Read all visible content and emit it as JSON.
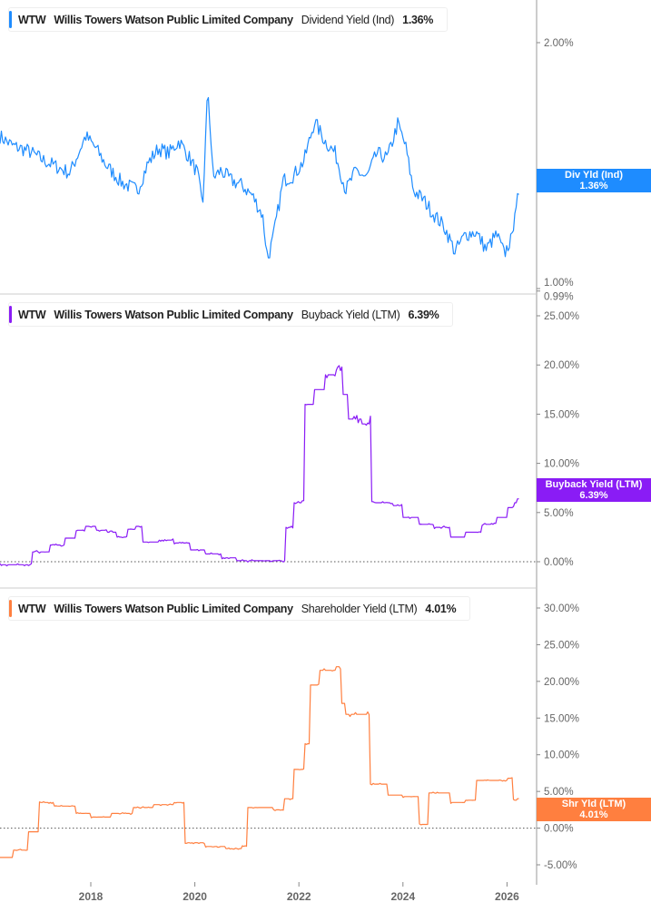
{
  "ticker": "WTW",
  "company": "Willis Towers Watson Public Limited Company",
  "colors": {
    "div": "#1e8cff",
    "buyback": "#8a1cf5",
    "shr": "#ff7f3f"
  },
  "chart_data": [
    {
      "type": "line",
      "metric": "Dividend Yield (Ind)",
      "last": "1.36%",
      "tag_label": "Div Yld (Ind)",
      "tag_value": "1.36%",
      "ylim": [
        0.99,
        2.2
      ],
      "yticks": [
        {
          "v": 2.0,
          "l": "2.00%"
        },
        {
          "v": 1.0,
          "l": "1.00%"
        },
        {
          "v": 0.99,
          "l": "0.99%"
        }
      ],
      "x": [
        2016.25,
        2016.5,
        2016.8,
        2017.1,
        2017.3,
        2017.6,
        2017.9,
        2018.1,
        2018.3,
        2018.6,
        2018.9,
        2019.1,
        2019.3,
        2019.5,
        2019.7,
        2019.9,
        2020.05,
        2020.15,
        2020.25,
        2020.35,
        2020.5,
        2020.7,
        2020.9,
        2021.1,
        2021.3,
        2021.4,
        2021.5,
        2021.7,
        2021.9,
        2022.1,
        2022.3,
        2022.5,
        2022.7,
        2022.9,
        2023.1,
        2023.3,
        2023.5,
        2023.7,
        2023.9,
        2024.05,
        2024.2,
        2024.4,
        2024.6,
        2024.8,
        2025.0,
        2025.2,
        2025.4,
        2025.6,
        2025.8,
        2025.95,
        2026.05,
        2026.1,
        2026.15,
        2026.2
      ],
      "y": [
        1.62,
        1.58,
        1.56,
        1.52,
        1.5,
        1.47,
        1.62,
        1.57,
        1.5,
        1.43,
        1.4,
        1.51,
        1.57,
        1.55,
        1.6,
        1.53,
        1.47,
        1.33,
        1.82,
        1.45,
        1.48,
        1.44,
        1.42,
        1.38,
        1.3,
        1.12,
        1.2,
        1.44,
        1.46,
        1.52,
        1.68,
        1.6,
        1.55,
        1.4,
        1.48,
        1.45,
        1.55,
        1.53,
        1.67,
        1.58,
        1.4,
        1.36,
        1.3,
        1.25,
        1.15,
        1.22,
        1.23,
        1.16,
        1.22,
        1.14,
        1.19,
        1.2,
        1.33,
        1.36
      ]
    },
    {
      "type": "line",
      "metric": "Buyback Yield (LTM)",
      "last": "6.39%",
      "tag_label": "Buyback Yield (LTM)",
      "tag_value": "6.39%",
      "ylim": [
        -1,
        27
      ],
      "yticks": [
        {
          "v": 25,
          "l": "25.00%"
        },
        {
          "v": 20,
          "l": "20.00%"
        },
        {
          "v": 15,
          "l": "15.00%"
        },
        {
          "v": 10,
          "l": "10.00%"
        },
        {
          "v": 5,
          "l": "5.00%"
        },
        {
          "v": 0,
          "l": "0.00%"
        }
      ],
      "x": [
        2016.25,
        2016.86,
        2017.2,
        2017.5,
        2017.7,
        2017.9,
        2018.1,
        2018.3,
        2018.5,
        2018.7,
        2018.85,
        2019.0,
        2019.3,
        2019.6,
        2019.9,
        2020.2,
        2020.5,
        2020.8,
        2021.7,
        2021.75,
        2021.9,
        2022.05,
        2022.1,
        2022.3,
        2022.5,
        2022.7,
        2022.85,
        2022.95,
        2023.2,
        2023.35,
        2023.4,
        2023.8,
        2024.0,
        2024.3,
        2024.6,
        2024.9,
        2025.2,
        2025.5,
        2025.8,
        2026.0,
        2026.15,
        2026.2
      ],
      "y": [
        -0.3,
        1.0,
        1.7,
        2.4,
        3.2,
        3.6,
        3.2,
        3.0,
        2.5,
        3.3,
        3.6,
        2.0,
        2.2,
        1.9,
        1.2,
        0.8,
        0.4,
        0.1,
        0.1,
        3.5,
        6.0,
        6.2,
        16,
        17.5,
        19,
        19.8,
        17,
        14.5,
        14,
        14.8,
        6.0,
        5.7,
        4.5,
        3.8,
        3.5,
        2.5,
        3.0,
        3.8,
        4.5,
        5.5,
        6.0,
        6.39
      ]
    },
    {
      "type": "line",
      "metric": "Shareholder Yield (LTM)",
      "last": "4.01%",
      "tag_label": "Shr Yld (LTM)",
      "tag_value": "4.01%",
      "ylim": [
        -6.5,
        32
      ],
      "yticks": [
        {
          "v": 30,
          "l": "30.00%"
        },
        {
          "v": 25,
          "l": "25.00%"
        },
        {
          "v": 20,
          "l": "20.00%"
        },
        {
          "v": 15,
          "l": "15.00%"
        },
        {
          "v": 10,
          "l": "10.00%"
        },
        {
          "v": 5,
          "l": "5.00%"
        },
        {
          "v": 0,
          "l": "0.00%"
        },
        {
          "v": -5,
          "l": "-5.00%"
        }
      ],
      "x": [
        2016.25,
        2016.5,
        2016.8,
        2017.0,
        2017.3,
        2017.7,
        2018.0,
        2018.4,
        2018.8,
        2019.2,
        2019.6,
        2019.8,
        2020.2,
        2020.6,
        2020.9,
        2021.0,
        2021.5,
        2021.7,
        2021.9,
        2022.1,
        2022.2,
        2022.4,
        2022.7,
        2022.8,
        2022.9,
        2023.3,
        2023.35,
        2023.7,
        2024.0,
        2024.3,
        2024.5,
        2024.9,
        2025.2,
        2025.4,
        2025.8,
        2026.0,
        2026.1,
        2026.2
      ],
      "y": [
        -4.0,
        -3,
        -0.5,
        3.5,
        3.0,
        2.0,
        1.5,
        2.0,
        2.8,
        3.2,
        3.5,
        -2,
        -2.5,
        -2.8,
        -2.4,
        2.8,
        2.5,
        4.0,
        8.0,
        11.5,
        19.5,
        21.5,
        22.0,
        17,
        15.5,
        15.5,
        6,
        4.5,
        4.3,
        0.5,
        4.8,
        3.5,
        3.8,
        6.5,
        6.5,
        6.8,
        3.8,
        4.01
      ]
    }
  ],
  "xaxis": {
    "ticks": [
      "2018",
      "2020",
      "2022",
      "2024",
      "2026"
    ],
    "values": [
      2018,
      2020,
      2022,
      2024,
      2026
    ],
    "range": [
      2016.25,
      2027.1
    ]
  }
}
